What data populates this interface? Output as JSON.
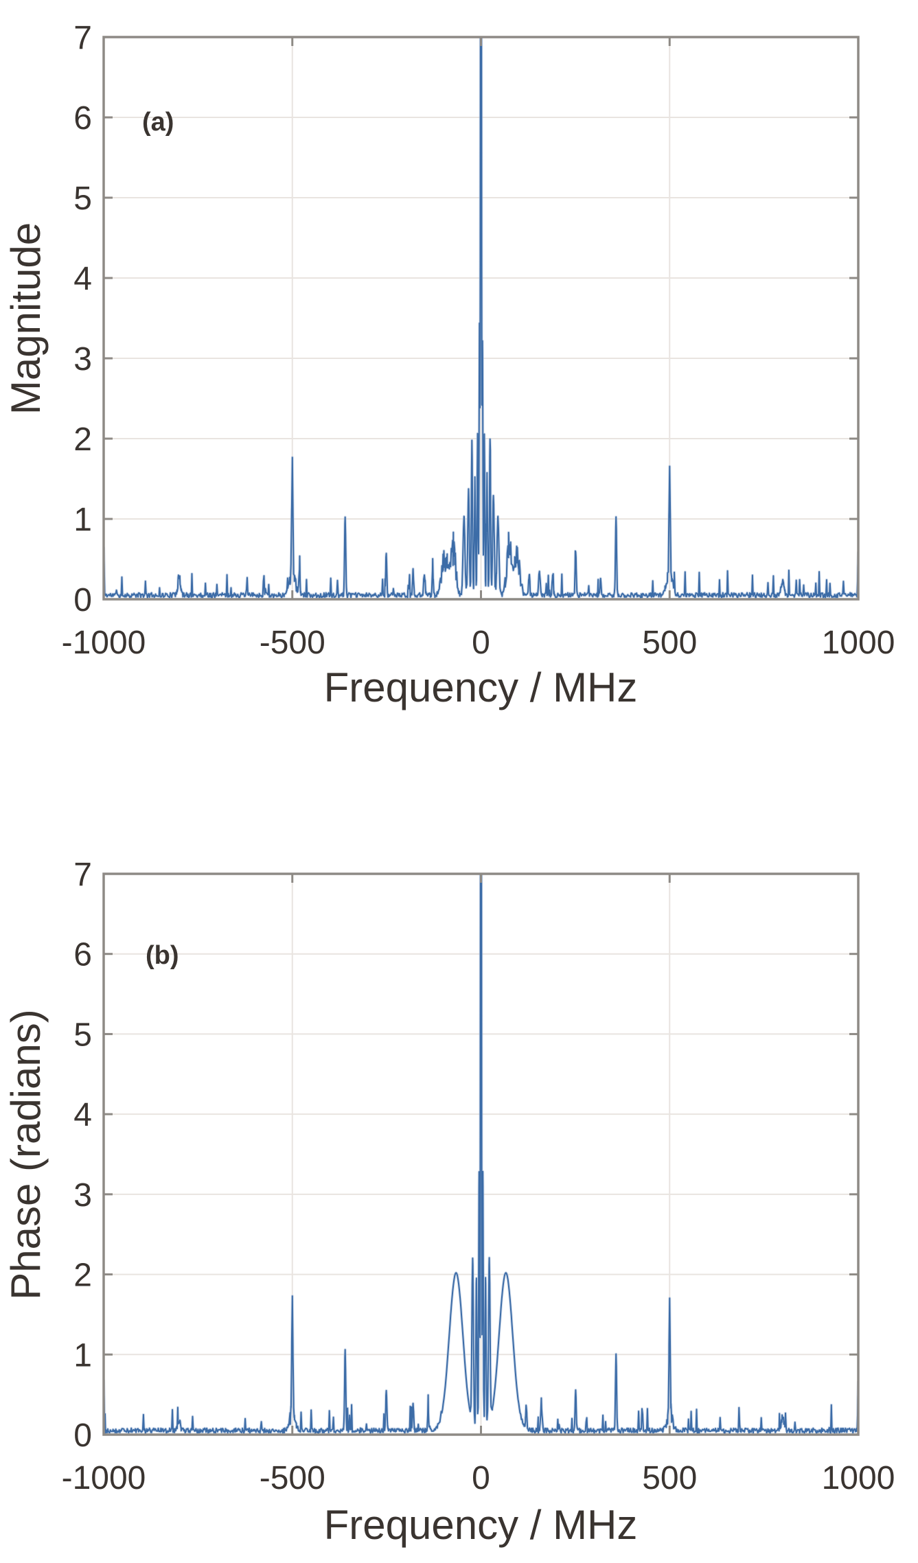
{
  "figure": {
    "background_color": "#ffffff",
    "panels": [
      "(a)",
      "(b)"
    ]
  },
  "style": {
    "line_color": "#3c6ca7",
    "line_glow_color": "#a9bedb",
    "grid_color": "#e9e4e0",
    "axis_color": "#8e8a85",
    "text_color": "#3a3430"
  },
  "chart_data": [
    {
      "type": "line",
      "title": "(a)",
      "xlabel": "Frequency / MHz",
      "ylabel": "Magnitude",
      "xlim": [
        -1000,
        1000
      ],
      "ylim": [
        0,
        7
      ],
      "x_ticks": [
        -1000,
        -500,
        0,
        500,
        1000
      ],
      "y_ticks": [
        0,
        1,
        2,
        3,
        4,
        5,
        6,
        7
      ],
      "grid": true,
      "legend": "none",
      "noise_floor": 0.07,
      "center_peak_clipped_above": 7,
      "peaks": [
        {
          "x": -1000,
          "h": 0.6,
          "w": 2.5
        },
        {
          "x": -800,
          "h": 0.22,
          "w": 5,
          "s": "jag"
        },
        {
          "x": -500,
          "h": 1.42,
          "w": 3
        },
        {
          "x": -500,
          "h": 0.28,
          "w": 11,
          "s": "jag"
        },
        {
          "x": -481,
          "h": 0.3,
          "w": 3
        },
        {
          "x": -360,
          "h": 1.0,
          "w": 3
        },
        {
          "x": -251,
          "h": 0.52,
          "w": 3
        },
        {
          "x": -180,
          "h": 0.3,
          "w": 3
        },
        {
          "x": -150,
          "h": 0.28,
          "w": 4
        },
        {
          "x": -128,
          "h": 0.3,
          "w": 3
        },
        {
          "x": -95,
          "h": 0.5,
          "w": 11,
          "s": "jag"
        },
        {
          "x": -74,
          "h": 0.62,
          "w": 9,
          "s": "jag"
        },
        {
          "x": -45,
          "h": 1.0,
          "w": 5
        },
        {
          "x": -33,
          "h": 1.3,
          "w": 4
        },
        {
          "x": -24,
          "h": 1.95,
          "w": 3
        },
        {
          "x": -16,
          "h": 1.45,
          "w": 3
        },
        {
          "x": -9,
          "h": 2.0,
          "w": 2.5
        },
        {
          "x": -4,
          "h": 3.15,
          "w": 2.2
        },
        {
          "x": 0,
          "h": 14,
          "w": 2.2
        },
        {
          "x": 4,
          "h": 3.15,
          "w": 2.2
        },
        {
          "x": 9,
          "h": 2.0,
          "w": 2.5
        },
        {
          "x": 16,
          "h": 1.5,
          "w": 3
        },
        {
          "x": 24,
          "h": 1.95,
          "w": 3
        },
        {
          "x": 33,
          "h": 1.25,
          "w": 4
        },
        {
          "x": 45,
          "h": 1.0,
          "w": 5
        },
        {
          "x": 74,
          "h": 0.62,
          "w": 9,
          "s": "jag"
        },
        {
          "x": 95,
          "h": 0.5,
          "w": 11,
          "s": "jag"
        },
        {
          "x": 128,
          "h": 0.28,
          "w": 3
        },
        {
          "x": 155,
          "h": 0.3,
          "w": 4
        },
        {
          "x": 190,
          "h": 0.25,
          "w": 3
        },
        {
          "x": 251,
          "h": 0.55,
          "w": 3
        },
        {
          "x": 317,
          "h": 0.2,
          "w": 3
        },
        {
          "x": 358,
          "h": 0.97,
          "w": 3
        },
        {
          "x": 500,
          "h": 1.42,
          "w": 3
        },
        {
          "x": 500,
          "h": 0.25,
          "w": 11,
          "s": "jag"
        },
        {
          "x": 800,
          "h": 0.2,
          "w": 5,
          "s": "jag"
        },
        {
          "x": 1000,
          "h": 0.55,
          "w": 2.5
        }
      ]
    },
    {
      "type": "line",
      "title": "(b)",
      "xlabel": "Frequency / MHz",
      "ylabel": "Phase (radians)",
      "xlim": [
        -1000,
        1000
      ],
      "ylim": [
        0,
        7
      ],
      "x_ticks": [
        -1000,
        -500,
        0,
        500,
        1000
      ],
      "y_ticks": [
        0,
        1,
        2,
        3,
        4,
        5,
        6,
        7
      ],
      "grid": true,
      "legend": "none",
      "noise_floor": 0.07,
      "center_peak_clipped_above": 7,
      "peaks": [
        {
          "x": -1000,
          "h": 0.65,
          "w": 2.5
        },
        {
          "x": -800,
          "h": 0.15,
          "w": 5,
          "s": "jag"
        },
        {
          "x": -500,
          "h": 1.42,
          "w": 3
        },
        {
          "x": -500,
          "h": 0.22,
          "w": 10,
          "s": "jag"
        },
        {
          "x": -360,
          "h": 1.0,
          "w": 3
        },
        {
          "x": -251,
          "h": 0.52,
          "w": 3
        },
        {
          "x": -180,
          "h": 0.35,
          "w": 3
        },
        {
          "x": -140,
          "h": 0.25,
          "w": 3
        },
        {
          "x": -66,
          "h": 2.02,
          "w": 26,
          "s": "smooth"
        },
        {
          "x": -22,
          "h": 2.05,
          "w": 4
        },
        {
          "x": -12,
          "h": 1.9,
          "w": 3
        },
        {
          "x": -5,
          "h": 3.2,
          "w": 2.2
        },
        {
          "x": 0,
          "h": 14,
          "w": 2.2
        },
        {
          "x": 5,
          "h": 3.2,
          "w": 2.2
        },
        {
          "x": 12,
          "h": 1.9,
          "w": 3
        },
        {
          "x": 22,
          "h": 2.05,
          "w": 4
        },
        {
          "x": 66,
          "h": 2.02,
          "w": 26,
          "s": "smooth"
        },
        {
          "x": 120,
          "h": 0.3,
          "w": 3
        },
        {
          "x": 160,
          "h": 0.3,
          "w": 4
        },
        {
          "x": 251,
          "h": 0.5,
          "w": 3
        },
        {
          "x": 358,
          "h": 0.95,
          "w": 3
        },
        {
          "x": 500,
          "h": 1.4,
          "w": 3
        },
        {
          "x": 500,
          "h": 0.22,
          "w": 10,
          "s": "jag"
        },
        {
          "x": 800,
          "h": 0.15,
          "w": 5,
          "s": "jag"
        },
        {
          "x": 1000,
          "h": 0.6,
          "w": 2.5
        }
      ]
    }
  ]
}
